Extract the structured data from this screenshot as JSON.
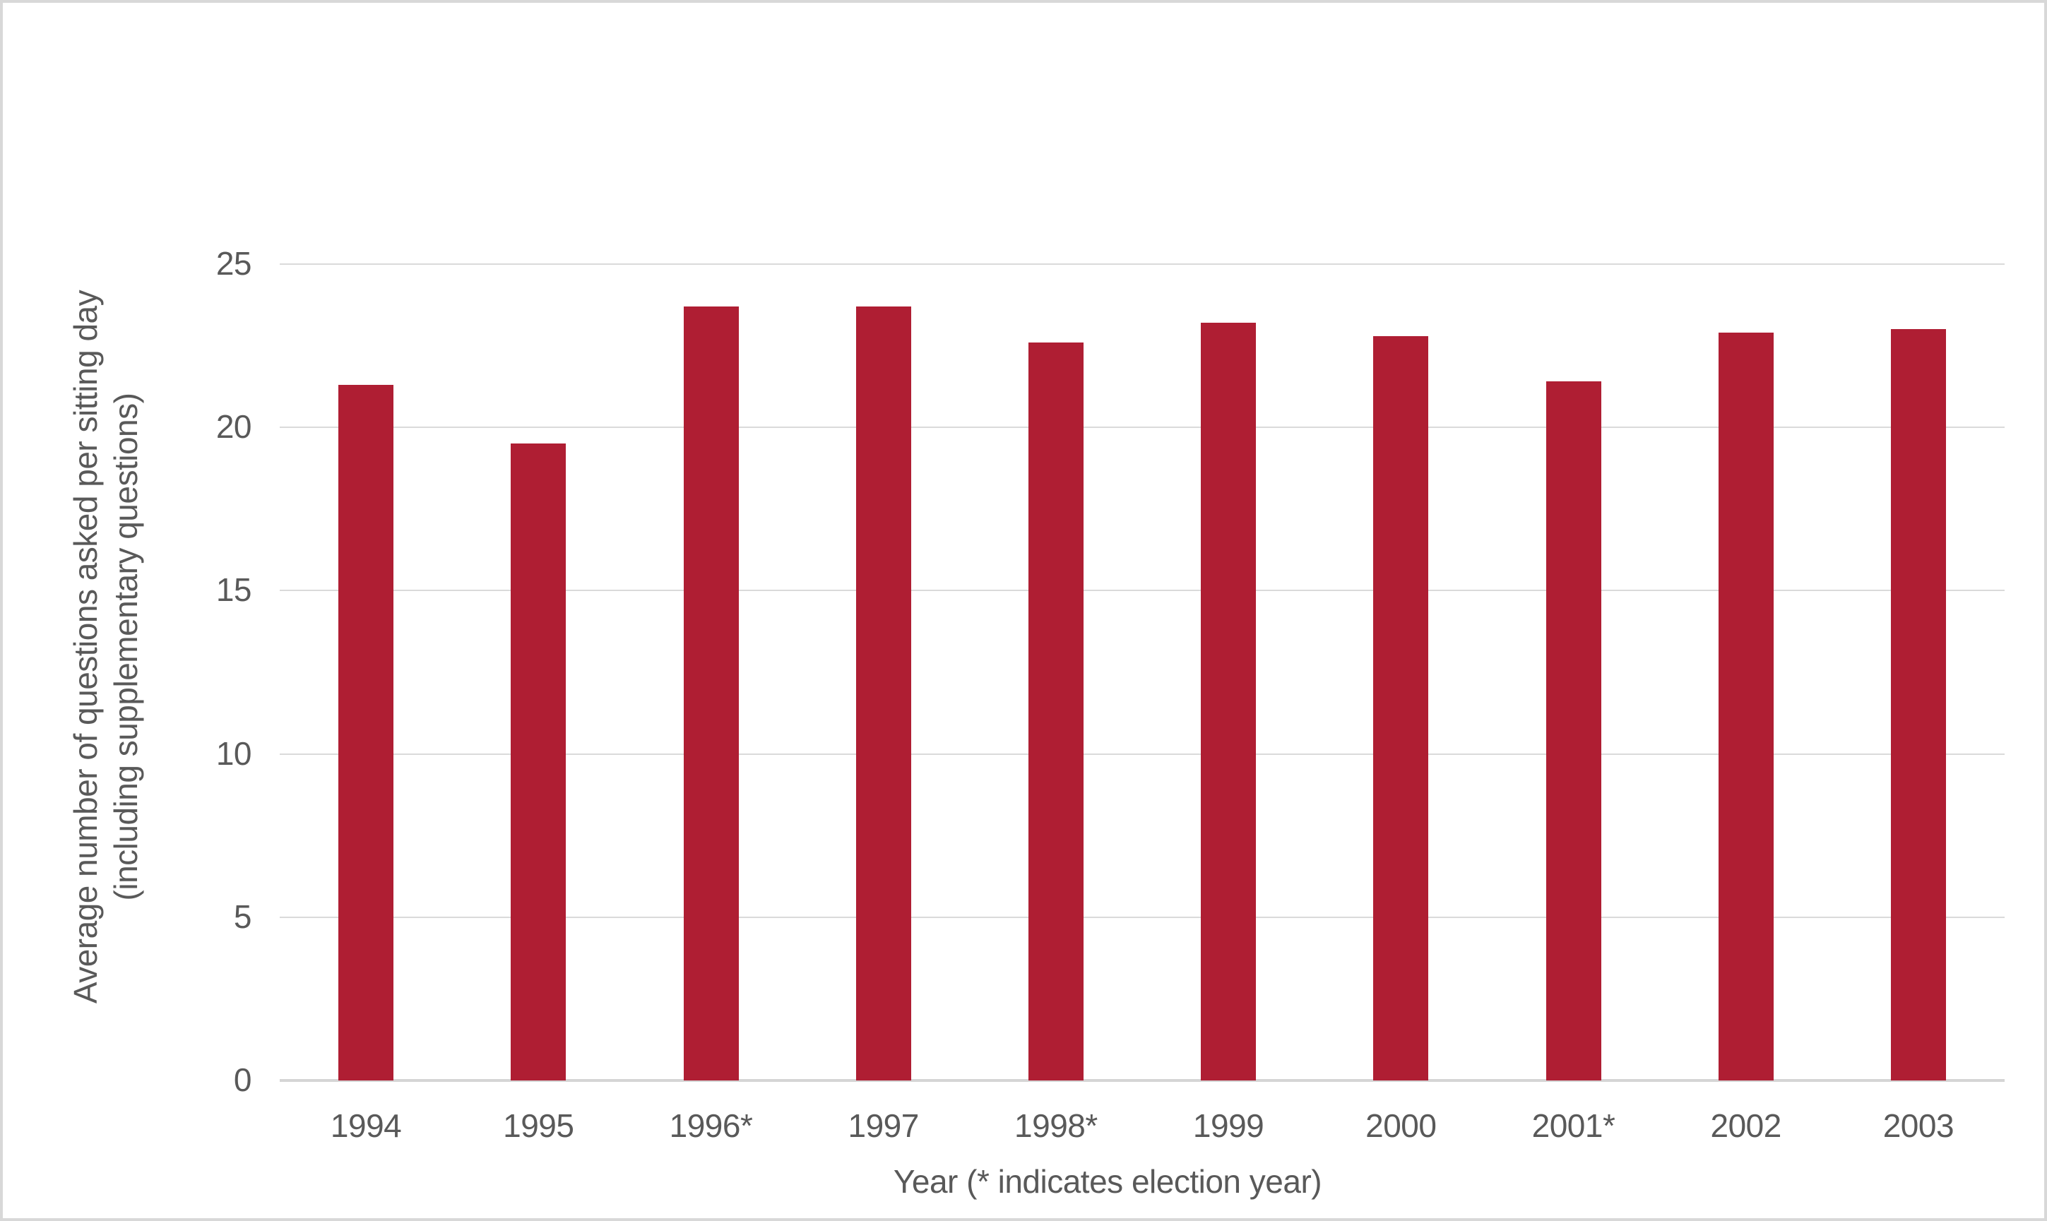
{
  "chart_data": {
    "type": "bar",
    "categories": [
      "1994",
      "1995",
      "1996*",
      "1997",
      "1998*",
      "1999",
      "2000",
      "2001*",
      "2002",
      "2003"
    ],
    "values": [
      21.3,
      19.5,
      23.7,
      23.7,
      22.6,
      23.2,
      22.8,
      21.4,
      22.9,
      23.0
    ],
    "xlabel": "Year (* indicates election year)",
    "ylabel": "Average number of questions asked per sitting day\n(including supplementary questions)",
    "ylim": [
      0,
      25
    ],
    "yticks": [
      0,
      5,
      10,
      15,
      20,
      25
    ],
    "grid": true,
    "legend_position": "none",
    "bar_color": "#AF1E33"
  },
  "colors": {
    "bar": "#AF1E33",
    "gridline": "#DADADA",
    "axis_line": "#D5D5D5",
    "text": "#595959",
    "frame_border": "#D8D8D8",
    "background": "#FFFFFF"
  }
}
